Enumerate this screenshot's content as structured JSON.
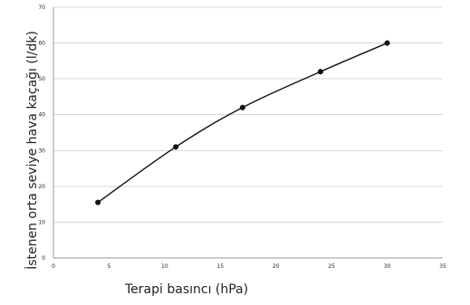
{
  "chart_data": {
    "type": "line",
    "title": "",
    "xlabel": "Terapi basıncı (hPa)",
    "ylabel": "İstenen orta seviye hava kaçağı (l/dk)",
    "xlim": [
      0,
      35
    ],
    "ylim": [
      0,
      70
    ],
    "x_ticks": [
      0,
      5,
      10,
      15,
      20,
      25,
      30,
      35
    ],
    "y_ticks": [
      0,
      10,
      20,
      30,
      40,
      50,
      60,
      70
    ],
    "grid": "horizontal",
    "legend": "none",
    "series": [
      {
        "x": [
          4,
          11,
          17,
          24,
          30
        ],
        "values": [
          15.5,
          31,
          42,
          52,
          60
        ]
      }
    ],
    "colors": {
      "series": "#111111",
      "grid": "#d7d7d7",
      "axis": "#9a9a9a"
    }
  }
}
